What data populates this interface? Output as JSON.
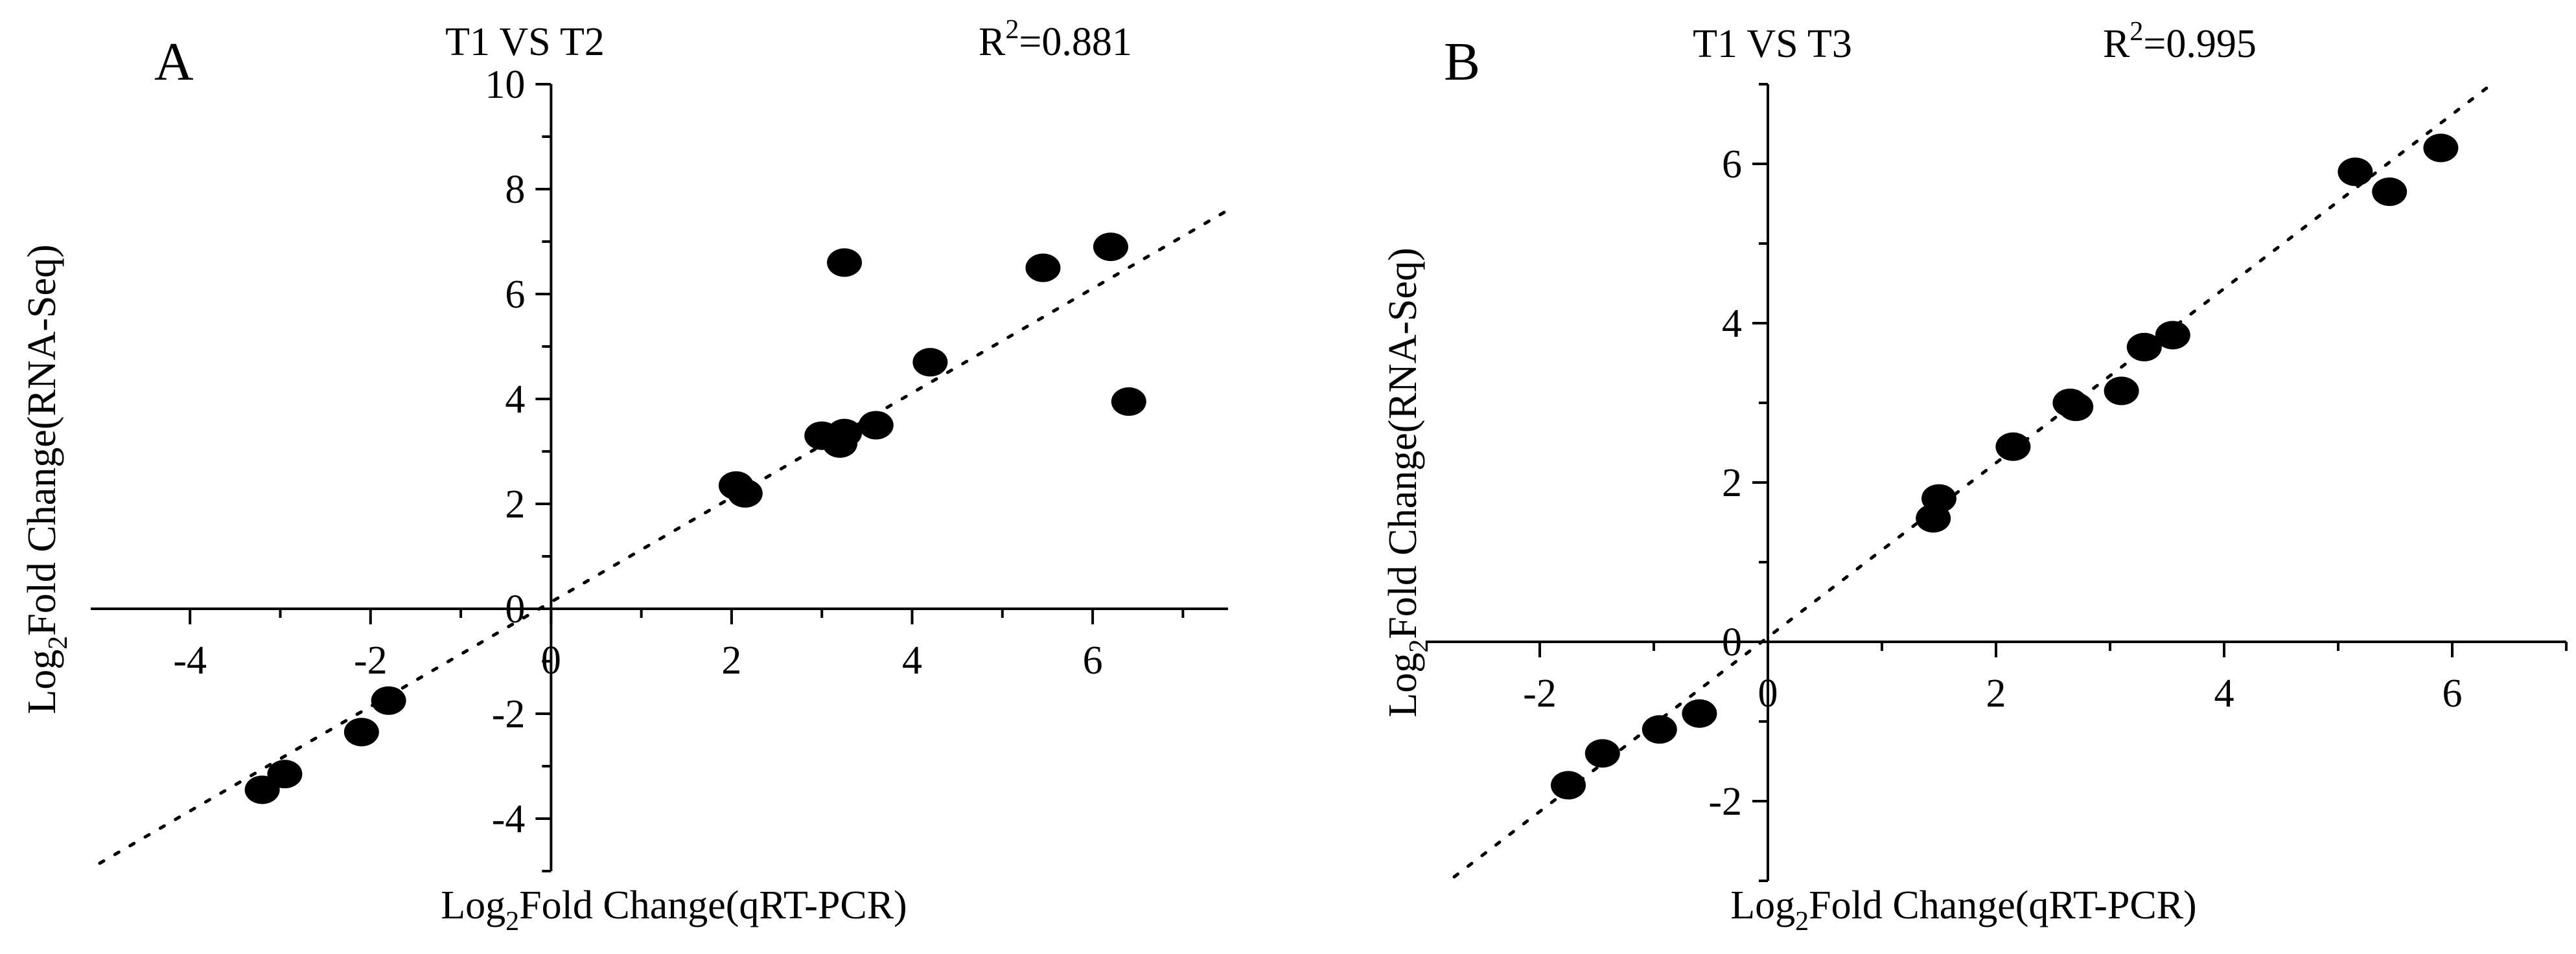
{
  "chart_data": [
    {
      "panel": "A",
      "type": "scatter",
      "title": "T1 VS T2",
      "r2_label": "R",
      "r2_sup": "2",
      "r2_value": "=0.881",
      "xlabel": {
        "pre": "Log",
        "sub": "2",
        "post": "Fold Change(qRT-PCR)"
      },
      "ylabel": {
        "pre": "Log",
        "sub": "2",
        "post": "Fold Change(RNA-Seq)"
      },
      "xlim": [
        -5.1,
        7.5
      ],
      "ylim": [
        -5.0,
        10.0
      ],
      "xticks": [
        -4,
        -2,
        0,
        2,
        4,
        6
      ],
      "yticks": [
        -4,
        -2,
        0,
        2,
        4,
        6,
        8,
        10
      ],
      "trendline": {
        "x": [
          -5.0,
          7.5
        ],
        "y": [
          -4.85,
          7.6
        ]
      },
      "points": [
        {
          "x": -3.2,
          "y": -3.45
        },
        {
          "x": -2.95,
          "y": -3.15
        },
        {
          "x": -2.1,
          "y": -2.35
        },
        {
          "x": -1.8,
          "y": -1.75
        },
        {
          "x": 2.05,
          "y": 2.35
        },
        {
          "x": 2.15,
          "y": 2.2
        },
        {
          "x": 3.0,
          "y": 3.3
        },
        {
          "x": 3.2,
          "y": 3.15
        },
        {
          "x": 3.25,
          "y": 3.35
        },
        {
          "x": 3.6,
          "y": 3.5
        },
        {
          "x": 4.2,
          "y": 4.7
        },
        {
          "x": 3.25,
          "y": 6.6
        },
        {
          "x": 5.45,
          "y": 6.5
        },
        {
          "x": 6.2,
          "y": 6.9
        },
        {
          "x": 6.4,
          "y": 3.95
        }
      ]
    },
    {
      "panel": "B",
      "type": "scatter",
      "title": "T1 VS T3",
      "r2_label": "R",
      "r2_sup": "2",
      "r2_value": "=0.995",
      "xlabel": {
        "pre": "Log",
        "sub": "2",
        "post": "Fold Change(qRT-PCR)"
      },
      "ylabel": {
        "pre": "Log",
        "sub": "2",
        "post": "Fold Change(RNA-Seq)"
      },
      "xlim": [
        -3.0,
        7.0
      ],
      "ylim": [
        -3.0,
        7.0
      ],
      "xticks": [
        -2,
        0,
        2,
        4,
        6
      ],
      "yticks": [
        -2,
        0,
        2,
        4,
        6
      ],
      "trendline": {
        "x": [
          -2.75,
          6.3
        ],
        "y": [
          -2.95,
          6.95
        ]
      },
      "points": [
        {
          "x": -1.75,
          "y": -1.8
        },
        {
          "x": -1.45,
          "y": -1.4
        },
        {
          "x": -0.95,
          "y": -1.1
        },
        {
          "x": -0.6,
          "y": -0.9
        },
        {
          "x": 1.45,
          "y": 1.55
        },
        {
          "x": 1.5,
          "y": 1.8
        },
        {
          "x": 2.15,
          "y": 2.45
        },
        {
          "x": 2.65,
          "y": 3.0
        },
        {
          "x": 2.7,
          "y": 2.95
        },
        {
          "x": 3.1,
          "y": 3.15
        },
        {
          "x": 3.3,
          "y": 3.7
        },
        {
          "x": 3.55,
          "y": 3.85
        },
        {
          "x": 5.15,
          "y": 5.9
        },
        {
          "x": 5.45,
          "y": 5.65
        },
        {
          "x": 5.9,
          "y": 6.2
        }
      ]
    }
  ]
}
